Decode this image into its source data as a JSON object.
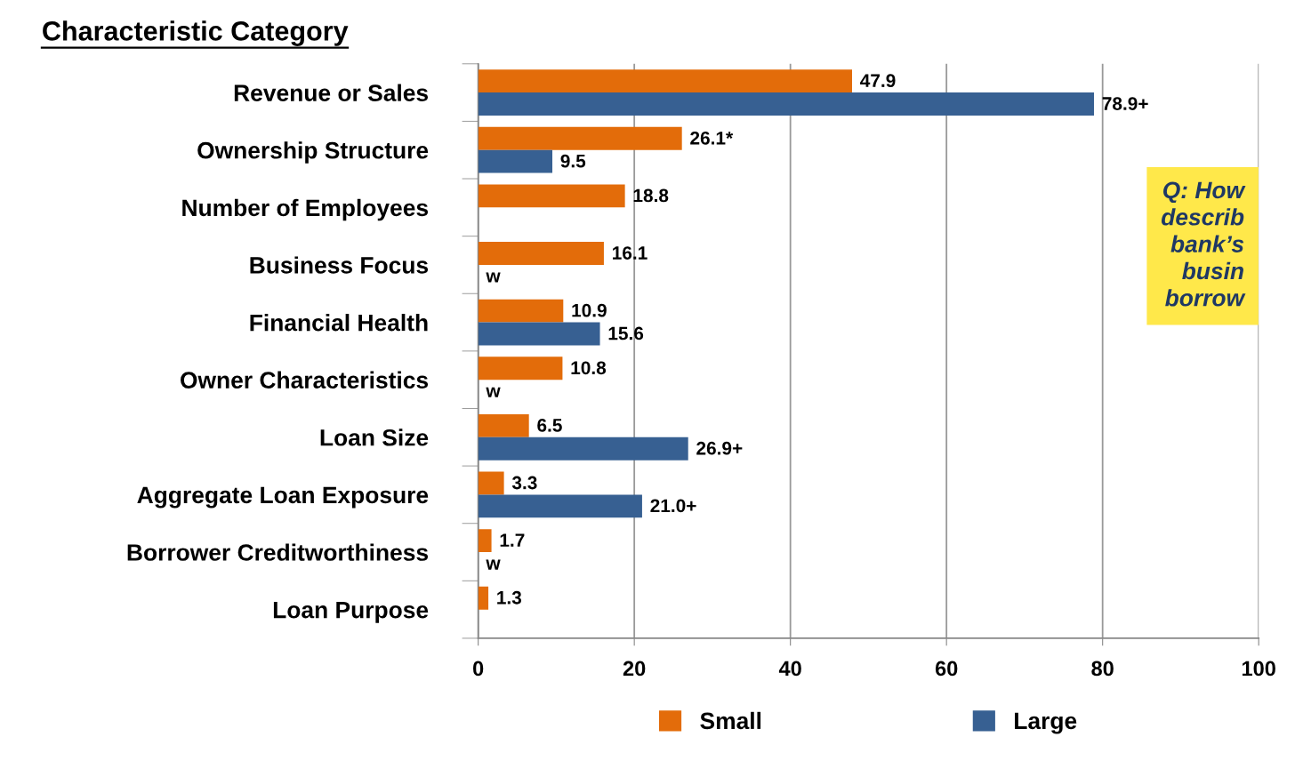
{
  "chart_data": {
    "type": "bar",
    "orientation": "horizontal",
    "title": "Characteristic Category",
    "categories": [
      "Revenue or Sales",
      "Ownership Structure",
      "Number of Employees",
      "Business Focus",
      "Financial Health",
      "Owner Characteristics",
      "Loan Size",
      "Aggregate Loan Exposure",
      "Borrower Creditworthiness",
      "Loan Purpose"
    ],
    "series": [
      {
        "name": "Small",
        "color": "#e36c0a",
        "values": [
          47.9,
          26.1,
          18.8,
          16.1,
          10.9,
          10.8,
          6.5,
          3.3,
          1.7,
          1.3
        ],
        "value_labels": [
          "47.9",
          "26.1*",
          "18.8",
          "16.1",
          "10.9",
          "10.8",
          "6.5",
          "3.3",
          "1.7",
          "1.3"
        ]
      },
      {
        "name": "Large",
        "color": "#376092",
        "values": [
          78.9,
          9.5,
          null,
          null,
          15.6,
          null,
          26.9,
          21.0,
          null,
          null
        ],
        "value_labels": [
          "78.9+",
          "9.5",
          null,
          "w",
          "15.6",
          "w",
          "26.9+",
          "21.0+",
          "w",
          null
        ]
      }
    ],
    "xlim": [
      0,
      100
    ],
    "xticks": [
      0,
      20,
      40,
      60,
      80,
      100
    ],
    "grid": "x",
    "legend": "bottom",
    "annotations": [
      "Q: How\ndescrib\nbank’s\nbusin\nborrow"
    ]
  }
}
